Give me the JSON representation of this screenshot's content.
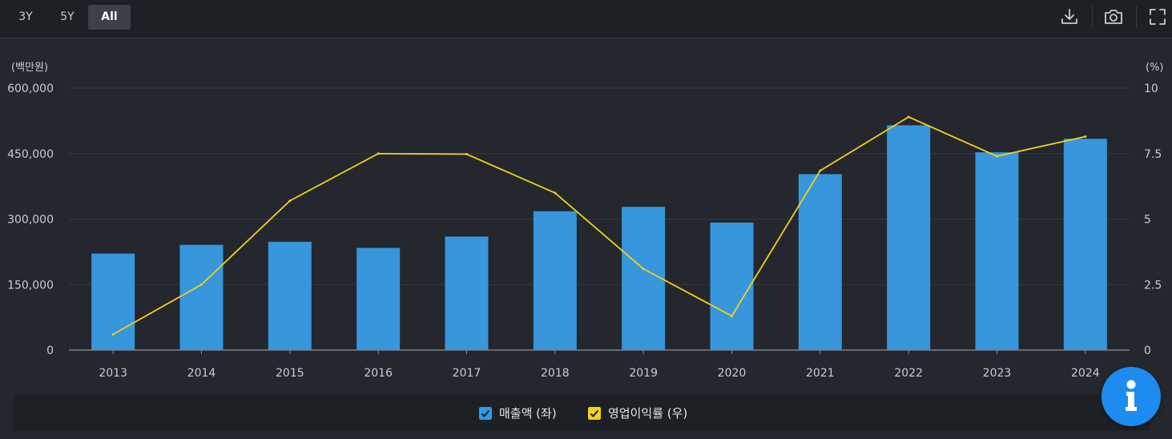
{
  "toolbar": {
    "ranges": [
      "3Y",
      "5Y",
      "All"
    ],
    "active_range": "All",
    "icons": [
      "download-icon",
      "camera-icon",
      "fullscreen-icon"
    ]
  },
  "chart_data": {
    "type": "bar",
    "categories": [
      "2013",
      "2014",
      "2015",
      "2016",
      "2017",
      "2018",
      "2019",
      "2020",
      "2021",
      "2022",
      "2023",
      "2024"
    ],
    "series": [
      {
        "name": "매출액 (좌)",
        "type": "bar",
        "axis": "left",
        "color": "#3796dc",
        "values": [
          221000,
          241000,
          248000,
          234000,
          260000,
          318000,
          328000,
          292000,
          403000,
          515000,
          453000,
          484000
        ]
      },
      {
        "name": "영업이익률 (우)",
        "type": "line",
        "axis": "right",
        "color": "#f2d21b",
        "values": [
          0.6,
          2.5,
          5.7,
          7.5,
          7.48,
          6.0,
          3.1,
          1.3,
          6.85,
          8.9,
          7.4,
          8.15
        ]
      }
    ],
    "left_axis": {
      "unit": "(백만원)",
      "min": 0,
      "max": 600000,
      "ticks": [
        0,
        150000,
        300000,
        450000,
        600000
      ],
      "tick_labels": [
        "0",
        "150,000",
        "300,000",
        "450,000",
        "600,000"
      ]
    },
    "right_axis": {
      "unit": "(%)",
      "min": 0,
      "max": 10,
      "ticks": [
        0,
        2.5,
        5,
        7.5,
        10
      ],
      "tick_labels": [
        "0",
        "2.5",
        "5",
        "7.5",
        "10"
      ]
    },
    "grid": true,
    "legend_position": "bottom"
  },
  "legend": [
    {
      "label": "매출액 (좌)",
      "color": "#2f9be8"
    },
    {
      "label": "영업이익률 (우)",
      "color": "#f2d21b"
    }
  ]
}
